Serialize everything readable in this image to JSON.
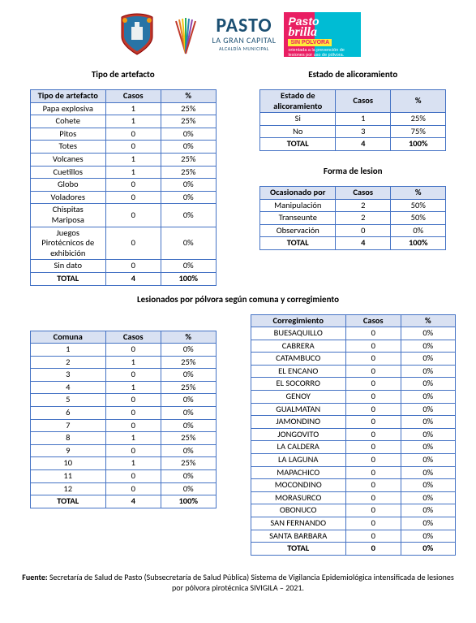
{
  "header": {
    "pasto_big": "PASTO",
    "pasto_sub": "LA GRAN CAPITAL",
    "pasto_tiny": "ALCALDÍA MUNICIPAL",
    "brilla_p": "Pasto",
    "brilla_b": "brilla",
    "brilla_sp": "SIN PÓLVORA",
    "brilla_txt": "orientada a la prevención de lesiones por uso de pólvora."
  },
  "table1": {
    "title": "Tipo de artefacto",
    "headers": [
      "Tipo de artefacto",
      "Casos",
      "%"
    ],
    "rows": [
      [
        "Papa explosiva",
        "1",
        "25%"
      ],
      [
        "Cohete",
        "1",
        "25%"
      ],
      [
        "Pitos",
        "0",
        "0%"
      ],
      [
        "Totes",
        "0",
        "0%"
      ],
      [
        "Volcanes",
        "1",
        "25%"
      ],
      [
        "Cuetillos",
        "1",
        "25%"
      ],
      [
        "Globo",
        "0",
        "0%"
      ],
      [
        "Voladores",
        "0",
        "0%"
      ],
      [
        "Chispitas Mariposa",
        "0",
        "0%"
      ],
      [
        "Juegos Pirotécnicos de exhibición",
        "0",
        "0%"
      ],
      [
        "Sin dato",
        "0",
        "0%"
      ]
    ],
    "total": [
      "TOTAL",
      "4",
      "100%"
    ]
  },
  "table2": {
    "title": "Estado de alicoramiento",
    "headers": [
      "Estado de alicoramiento",
      "Casos",
      "%"
    ],
    "rows": [
      [
        "Si",
        "1",
        "25%"
      ],
      [
        "No",
        "3",
        "75%"
      ]
    ],
    "total": [
      "TOTAL",
      "4",
      "100%"
    ]
  },
  "table3": {
    "title": "Forma de lesion",
    "headers": [
      "Ocasionado por",
      "Casos",
      "%"
    ],
    "rows": [
      [
        "Manipulación",
        "2",
        "50%"
      ],
      [
        "Transeunte",
        "2",
        "50%"
      ],
      [
        "Observación",
        "0",
        "0%"
      ]
    ],
    "total": [
      "TOTAL",
      "4",
      "100%"
    ]
  },
  "section4_title": "Lesionados por pólvora según comuna y corregimiento",
  "table4": {
    "headers": [
      "Comuna",
      "Casos",
      "%"
    ],
    "rows": [
      [
        "1",
        "0",
        "0%"
      ],
      [
        "2",
        "1",
        "25%"
      ],
      [
        "3",
        "0",
        "0%"
      ],
      [
        "4",
        "1",
        "25%"
      ],
      [
        "5",
        "0",
        "0%"
      ],
      [
        "6",
        "0",
        "0%"
      ],
      [
        "7",
        "0",
        "0%"
      ],
      [
        "8",
        "1",
        "25%"
      ],
      [
        "9",
        "0",
        "0%"
      ],
      [
        "10",
        "1",
        "25%"
      ],
      [
        "11",
        "0",
        "0%"
      ],
      [
        "12",
        "0",
        "0%"
      ]
    ],
    "total": [
      "TOTAL",
      "4",
      "100%"
    ]
  },
  "table5": {
    "headers": [
      "Corregimiento",
      "Casos",
      "%"
    ],
    "rows": [
      [
        "BUESAQUILLO",
        "0",
        "0%"
      ],
      [
        "CABRERA",
        "0",
        "0%"
      ],
      [
        "CATAMBUCO",
        "0",
        "0%"
      ],
      [
        "EL ENCANO",
        "0",
        "0%"
      ],
      [
        "EL SOCORRO",
        "0",
        "0%"
      ],
      [
        "GENOY",
        "0",
        "0%"
      ],
      [
        "GUALMATAN",
        "0",
        "0%"
      ],
      [
        "JAMONDINO",
        "0",
        "0%"
      ],
      [
        "JONGOVITO",
        "0",
        "0%"
      ],
      [
        "LA CALDERA",
        "0",
        "0%"
      ],
      [
        "LA LAGUNA",
        "0",
        "0%"
      ],
      [
        "MAPACHICO",
        "0",
        "0%"
      ],
      [
        "MOCONDINO",
        "0",
        "0%"
      ],
      [
        "MORASURCO",
        "0",
        "0%"
      ],
      [
        "OBONUCO",
        "0",
        "0%"
      ],
      [
        "SAN FERNANDO",
        "0",
        "0%"
      ],
      [
        "SANTA BARBARA",
        "0",
        "0%"
      ]
    ],
    "total": [
      "TOTAL",
      "0",
      "0%"
    ]
  },
  "footer": {
    "bold": "Fuente: ",
    "text": "Secretaría de Salud de Pasto (Subsecretaría de Salud Pública) Sistema de Vigilancia Epidemiológica intensificada de lesiones por pólvora pirotécnica SIVIGILA – 2021."
  },
  "colors": {
    "border": "#4472c4",
    "header_bg": "#d9e1f2"
  }
}
